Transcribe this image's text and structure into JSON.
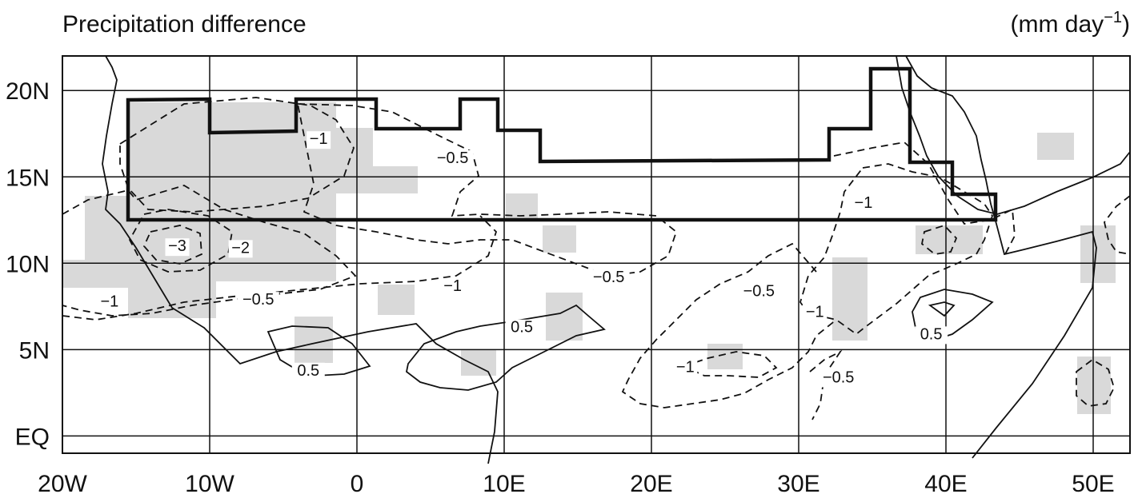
{
  "title": "Precipitation difference",
  "units": {
    "prefix": "(mm day",
    "exponent": "−1",
    "suffix": ")"
  },
  "axes": {
    "x_ticks": [
      "20W",
      "10W",
      "0",
      "10E",
      "20E",
      "30E",
      "40E",
      "50E"
    ],
    "y_ticks": [
      "20N",
      "15N",
      "10N",
      "5N",
      "EQ"
    ],
    "lon_range": [
      -20,
      52.5
    ],
    "lat_range": [
      -1,
      22
    ],
    "grid": true
  },
  "contour_labels": [
    {
      "text": "−1",
      "lon": -2.6,
      "lat": 16.9
    },
    {
      "text": "−0.5",
      "lon": 6.5,
      "lat": 15.8
    },
    {
      "text": "−1",
      "lon": 34.4,
      "lat": 13.2
    },
    {
      "text": "−3",
      "lon": -12.2,
      "lat": 10.7
    },
    {
      "text": "−2",
      "lon": -7.9,
      "lat": 10.6
    },
    {
      "text": "−1",
      "lon": 6.5,
      "lat": 8.4
    },
    {
      "text": "−0.5",
      "lon": 17.1,
      "lat": 8.9
    },
    {
      "text": "−1",
      "lon": -16.8,
      "lat": 7.5
    },
    {
      "text": "−0.5",
      "lon": -6.7,
      "lat": 7.6
    },
    {
      "text": "−0.5",
      "lon": 27.3,
      "lat": 8.1
    },
    {
      "text": "−1",
      "lon": 31.1,
      "lat": 6.9
    },
    {
      "text": "0.5",
      "lon": 11.2,
      "lat": 6.0
    },
    {
      "text": "0.5",
      "lon": 39.0,
      "lat": 5.6
    },
    {
      "text": "0.5",
      "lon": -3.3,
      "lat": 3.5
    },
    {
      "text": "−1",
      "lon": 22.3,
      "lat": 3.7
    },
    {
      "text": "−0.5",
      "lon": 32.7,
      "lat": 3.1
    }
  ],
  "colors": {
    "shading": "#d9d9d9",
    "contour": "#111111",
    "grid": "#111111",
    "box": "#111111"
  }
}
